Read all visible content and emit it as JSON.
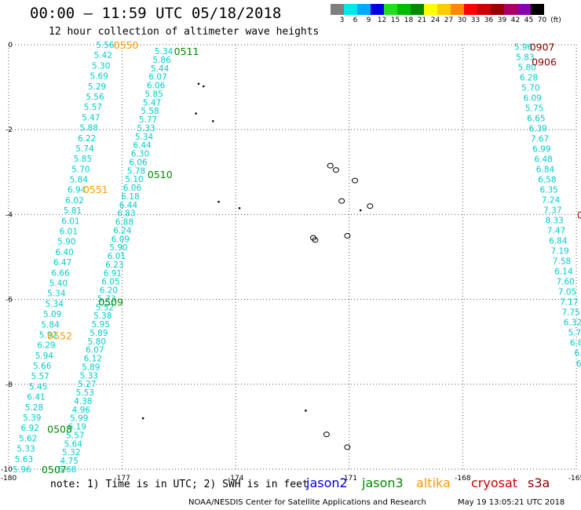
{
  "header": {
    "title": "00:00 – 11:59 UTC 05/18/2018",
    "subtitle": "12 hour collection of altimeter wave heights"
  },
  "legend": {
    "unit": "(ft)",
    "bins": [
      {
        "label": "3",
        "color": "#7f7f7f"
      },
      {
        "label": "6",
        "color": "#00e8e8"
      },
      {
        "label": "9",
        "color": "#00aaff"
      },
      {
        "label": "12",
        "color": "#0000e6"
      },
      {
        "label": "15",
        "color": "#22dd22"
      },
      {
        "label": "18",
        "color": "#00bb00"
      },
      {
        "label": "21",
        "color": "#008800"
      },
      {
        "label": "24",
        "color": "#ffff00"
      },
      {
        "label": "27",
        "color": "#ffcc00"
      },
      {
        "label": "30",
        "color": "#ff8800"
      },
      {
        "label": "33",
        "color": "#ff0000"
      },
      {
        "label": "36",
        "color": "#cc0000"
      },
      {
        "label": "39",
        "color": "#990000"
      },
      {
        "label": "42",
        "color": "#aa0066"
      },
      {
        "label": "45",
        "color": "#8800aa"
      },
      {
        "label": "70",
        "color": "#000000"
      }
    ]
  },
  "map": {
    "lon_range": [
      -180,
      -165
    ],
    "lat_range": [
      -10,
      0
    ],
    "x_ticks": [
      "-180",
      "-177",
      "-174",
      "-171",
      "-168",
      "-165"
    ],
    "y_ticks": [
      "0",
      "-2",
      "-4",
      "-6",
      "-8",
      "-10"
    ],
    "colors": {
      "cyan": "#00cccc",
      "sky": "#00aaee",
      "green": "#008800",
      "orange": "#ff9900",
      "darkred": "#880000",
      "red": "#cc0000"
    },
    "time_labels": [
      {
        "text": "0550",
        "lon": -176.9,
        "lat": 0.0,
        "color": "orange"
      },
      {
        "text": "0511",
        "lon": -175.3,
        "lat": -0.15,
        "color": "green"
      },
      {
        "text": "0510",
        "lon": -176.0,
        "lat": -3.05,
        "color": "green"
      },
      {
        "text": "0551",
        "lon": -177.7,
        "lat": -3.4,
        "color": "orange"
      },
      {
        "text": "0509",
        "lon": -177.3,
        "lat": -6.05,
        "color": "green"
      },
      {
        "text": "0552",
        "lon": -178.65,
        "lat": -6.85,
        "color": "orange"
      },
      {
        "text": "0508",
        "lon": -178.65,
        "lat": -9.05,
        "color": "green"
      },
      {
        "text": "0507",
        "lon": -178.8,
        "lat": -10.0,
        "color": "green"
      },
      {
        "text": "0907",
        "lon": -165.9,
        "lat": -0.05,
        "color": "darkred"
      },
      {
        "text": "0906",
        "lon": -165.85,
        "lat": -0.4,
        "color": "darkred"
      },
      {
        "text": "0",
        "lon": -164.9,
        "lat": -4.0,
        "color": "red"
      }
    ],
    "tracks": [
      {
        "name": "track-a",
        "color": "cyan",
        "lon_start": -177.45,
        "lat_start": 0.0,
        "lon_end": -179.65,
        "lat_end": -10.0,
        "values": [
          "5.56",
          "5.42",
          "5.30",
          "5.69",
          "5.29",
          "5.56",
          "5.57",
          "5.47",
          "5.88",
          "6.22",
          "5.74",
          "5.85",
          "5.70",
          "5.84",
          "6.94",
          "6.02",
          "5.81",
          "6.01",
          "6.01",
          "5.90",
          "6.40",
          "6.47",
          "6.66",
          "5.40",
          "5.34",
          "5.34",
          "5.09",
          "5.84",
          "5.92",
          "6.29",
          "5.94",
          "5.66",
          "5.57",
          "5.45",
          "6.41",
          "5.28",
          "5.39",
          "6.92",
          "5.62",
          "5.33",
          "5.63",
          "5.96"
        ]
      },
      {
        "name": "track-b",
        "color": "cyan",
        "lon_start": -175.9,
        "lat_start": -0.15,
        "lon_end": -178.45,
        "lat_end": -10.0,
        "values": [
          "5.34",
          "5.86",
          "5.44",
          "6.07",
          "6.06",
          "5.85",
          "5.47",
          "5.58",
          "5.77",
          "5.33",
          "5.34",
          "6.44",
          "6.30",
          "6.06",
          "5.78",
          "5.10",
          "6.06",
          "6.18",
          "6.44",
          "6.83",
          "6.88",
          "6.24",
          "6.09",
          "5.90",
          "6.01",
          "6.23",
          "6.91",
          "6.05",
          "6.20",
          "5.73",
          "5.52",
          "5.38",
          "5.95",
          "5.89",
          "5.80",
          "6.07",
          "6.12",
          "5.89",
          "5.33",
          "5.27",
          "5.53",
          "4.38",
          "4.96",
          "5.99",
          "6.19",
          "5.57",
          "5.64",
          "5.32",
          "4.75",
          "5.68"
        ]
      },
      {
        "name": "track-c",
        "color": "cyan",
        "lon_start": -166.4,
        "lat_start": -0.05,
        "lon_end": -164.9,
        "lat_end": -7.5,
        "values": [
          "5.96",
          "5.83",
          "5.80",
          "6.28",
          "5.70",
          "6.09",
          "5.75",
          "6.65",
          "6.39",
          "7.67",
          "6.99",
          "6.48",
          "6.84",
          "6.58",
          "6.35",
          "7.24",
          "7.37",
          "8.33",
          "7.47",
          "6.84",
          "7.19",
          "7.58",
          "6.14",
          "7.60",
          "7.05",
          "7.17",
          "7.75",
          "6.32",
          "5.7",
          "6.8",
          "6.",
          "6."
        ]
      }
    ],
    "islands": [
      {
        "lon": -174.98,
        "lat": -0.92,
        "shape": "dot"
      },
      {
        "lon": -174.85,
        "lat": -0.98,
        "shape": "dot"
      },
      {
        "lon": -175.05,
        "lat": -1.62,
        "shape": "dot"
      },
      {
        "lon": -174.6,
        "lat": -1.8,
        "shape": "dot"
      },
      {
        "lon": -171.5,
        "lat": -2.85,
        "shape": "ring"
      },
      {
        "lon": -171.35,
        "lat": -2.95,
        "shape": "ring"
      },
      {
        "lon": -170.85,
        "lat": -3.2,
        "shape": "ring"
      },
      {
        "lon": -171.2,
        "lat": -3.68,
        "shape": "ring"
      },
      {
        "lon": -170.45,
        "lat": -3.8,
        "shape": "ring"
      },
      {
        "lon": -170.7,
        "lat": -3.9,
        "shape": "dot"
      },
      {
        "lon": -173.9,
        "lat": -3.85,
        "shape": "dot"
      },
      {
        "lon": -174.45,
        "lat": -3.7,
        "shape": "dot"
      },
      {
        "lon": -171.95,
        "lat": -4.55,
        "shape": "ring"
      },
      {
        "lon": -171.9,
        "lat": -4.6,
        "shape": "ring"
      },
      {
        "lon": -171.05,
        "lat": -4.5,
        "shape": "ring"
      },
      {
        "lon": -172.15,
        "lat": -8.62,
        "shape": "dot"
      },
      {
        "lon": -176.45,
        "lat": -8.8,
        "shape": "dot"
      },
      {
        "lon": -171.6,
        "lat": -9.18,
        "shape": "ring"
      },
      {
        "lon": -171.05,
        "lat": -9.48,
        "shape": "ring"
      }
    ]
  },
  "note": "note: 1) Time is in UTC; 2) SWH is in feet",
  "missions": [
    {
      "label": "jason2",
      "color": "#0000dd"
    },
    {
      "label": "jason3",
      "color": "#008800"
    },
    {
      "label": "altika",
      "color": "#ff9900"
    },
    {
      "label": "cryosat",
      "color": "#cc0000"
    },
    {
      "label": "s3a",
      "color": "#880000"
    }
  ],
  "footer": {
    "credit": "NOAA/NESDIS Center for Satellite Applications and Research",
    "timestamp": "May 19 13:05:21 UTC 2018"
  }
}
